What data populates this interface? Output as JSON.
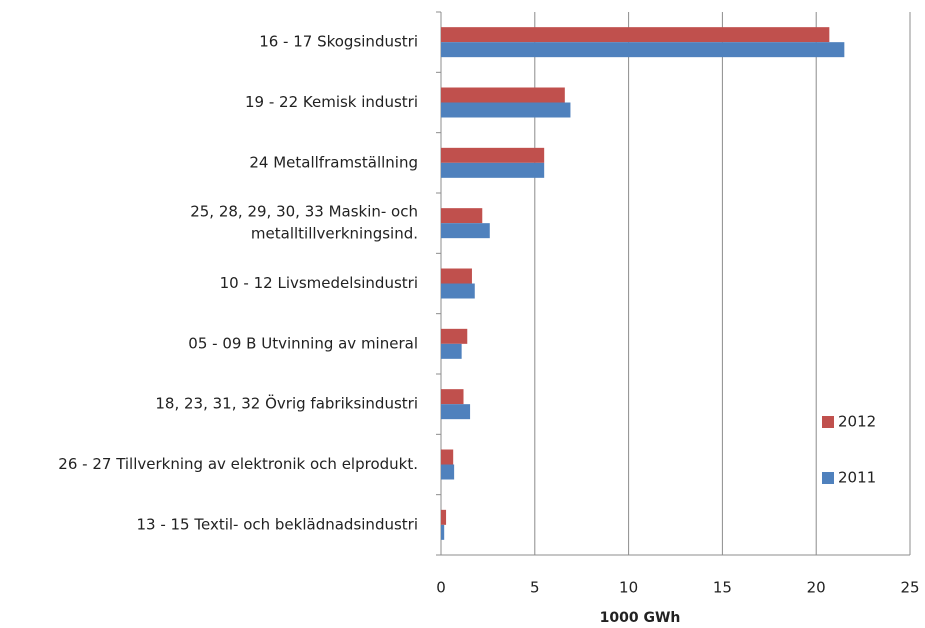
{
  "chart_data": {
    "type": "barh",
    "x_label": "1000 GWh",
    "categories": [
      "16 - 17 Skogsindustri",
      "19 - 22 Kemisk industri",
      "24 Metallframställning",
      [
        "25, 28, 29, 30, 33 Maskin- och",
        "metalltillverkningsind."
      ],
      "10 - 12 Livsmedelsindustri",
      "05 - 09 B Utvinning av mineral",
      "18, 23, 31, 32 Övrig fabriksindustri",
      "26 - 27 Tillverkning av elektronik och elprodukt.",
      "13 - 15 Textil- och beklädnadsindustri"
    ],
    "series": [
      {
        "name": "2012",
        "color": "#c0504d",
        "values": [
          20.7,
          6.6,
          5.5,
          2.2,
          1.65,
          1.4,
          1.2,
          0.65,
          0.27
        ]
      },
      {
        "name": "2011",
        "color": "#4f81bd",
        "values": [
          21.5,
          6.9,
          5.5,
          2.6,
          1.8,
          1.1,
          1.55,
          0.7,
          0.17
        ]
      }
    ],
    "xlim": [
      0,
      25
    ],
    "xticks": [
      0,
      5,
      10,
      15,
      20,
      25
    ],
    "grid": true,
    "legend": "right"
  }
}
